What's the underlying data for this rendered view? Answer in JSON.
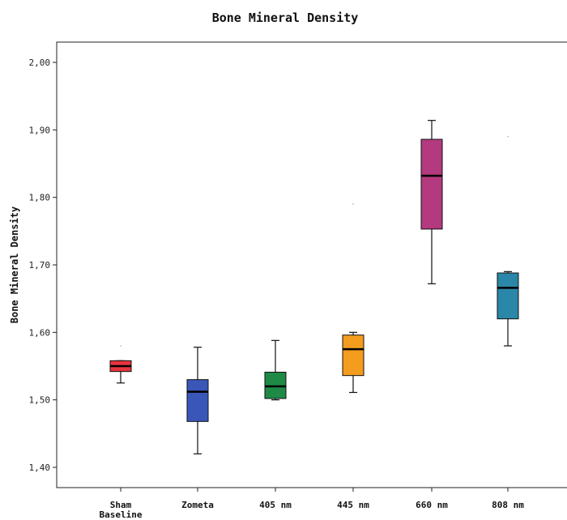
{
  "chart_data": {
    "type": "box",
    "title": "Bone Mineral Density",
    "ylabel": "Bone Mineral Density",
    "xlabel": "",
    "ylim": [
      1.37,
      2.03
    ],
    "yticks": [
      {
        "value": 1.4,
        "label": "1,40"
      },
      {
        "value": 1.5,
        "label": "1,50"
      },
      {
        "value": 1.6,
        "label": "1,60"
      },
      {
        "value": 1.7,
        "label": "1,70"
      },
      {
        "value": 1.8,
        "label": "1,80"
      },
      {
        "value": 1.9,
        "label": "1,90"
      },
      {
        "value": 2.0,
        "label": "2,00"
      }
    ],
    "grid": false,
    "boxes": [
      {
        "label": "Sham",
        "label2": "Baseline",
        "color": "#e8343e",
        "min": 1.525,
        "q1": 1.542,
        "median": 1.55,
        "q3": 1.558,
        "max": 1.558,
        "outliers": [
          1.58
        ]
      },
      {
        "label": "Zometa",
        "label2": "",
        "color": "#3a56b8",
        "min": 1.42,
        "q1": 1.468,
        "median": 1.512,
        "q3": 1.53,
        "max": 1.578,
        "outliers": []
      },
      {
        "label": "405 nm",
        "label2": "",
        "color": "#1f8a46",
        "min": 1.5,
        "q1": 1.502,
        "median": 1.52,
        "q3": 1.541,
        "max": 1.588,
        "outliers": []
      },
      {
        "label": "445 nm",
        "label2": "",
        "color": "#f39c1e",
        "min": 1.511,
        "q1": 1.536,
        "median": 1.575,
        "q3": 1.596,
        "max": 1.6,
        "outliers": [
          1.79
        ]
      },
      {
        "label": "660 nm",
        "label2": "",
        "color": "#b33a7e",
        "min": 1.672,
        "q1": 1.753,
        "median": 1.832,
        "q3": 1.886,
        "max": 1.914,
        "outliers": []
      },
      {
        "label": "808 nm",
        "label2": "",
        "color": "#2a87a8",
        "min": 1.58,
        "q1": 1.62,
        "median": 1.666,
        "q3": 1.688,
        "max": 1.69,
        "outliers": [
          1.89
        ]
      }
    ]
  }
}
